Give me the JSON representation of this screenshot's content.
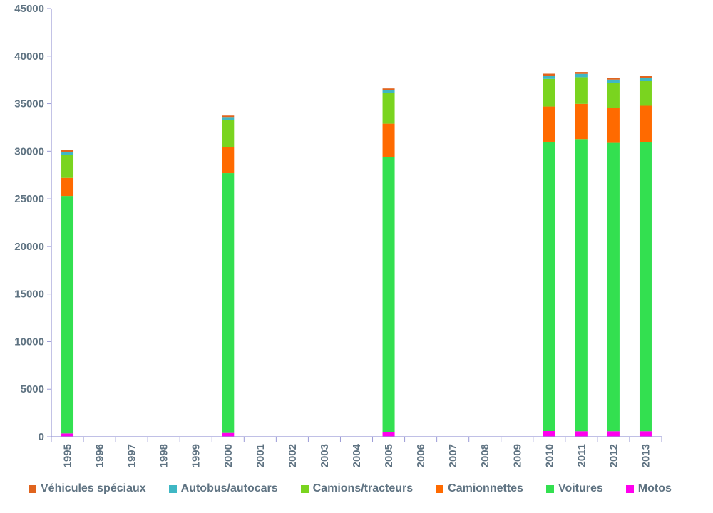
{
  "chart_data": {
    "type": "bar",
    "stacked": true,
    "title": "",
    "xlabel": "",
    "ylabel": "",
    "ylim": [
      0,
      45000
    ],
    "yticks": [
      0,
      5000,
      10000,
      15000,
      20000,
      25000,
      30000,
      35000,
      40000,
      45000
    ],
    "grid": false,
    "legend_position": "bottom",
    "categories": [
      "1995",
      "1996",
      "1997",
      "1998",
      "1999",
      "2000",
      "2001",
      "2002",
      "2003",
      "2004",
      "2005",
      "2006",
      "2007",
      "2008",
      "2009",
      "2010",
      "2011",
      "2012",
      "2013"
    ],
    "series": [
      {
        "name": "Motos",
        "color": "#ff00ee",
        "values": [
          350,
          0,
          0,
          0,
          0,
          400,
          0,
          0,
          0,
          0,
          500,
          0,
          0,
          0,
          0,
          600,
          580,
          580,
          580
        ]
      },
      {
        "name": "Voitures",
        "color": "#33e050",
        "values": [
          24950,
          0,
          0,
          0,
          0,
          27300,
          0,
          0,
          0,
          0,
          28900,
          0,
          0,
          0,
          0,
          30400,
          30700,
          30300,
          30400
        ]
      },
      {
        "name": "Camionnettes",
        "color": "#ff6a00",
        "values": [
          1900,
          0,
          0,
          0,
          0,
          2700,
          0,
          0,
          0,
          0,
          3500,
          0,
          0,
          0,
          0,
          3700,
          3700,
          3700,
          3800
        ]
      },
      {
        "name": "Camions/tracteurs",
        "color": "#7ad41f",
        "values": [
          2450,
          0,
          0,
          0,
          0,
          2900,
          0,
          0,
          0,
          0,
          3200,
          0,
          0,
          0,
          0,
          2900,
          2800,
          2600,
          2600
        ]
      },
      {
        "name": "Autobus/autocars",
        "color": "#3fb7c4",
        "values": [
          300,
          0,
          0,
          0,
          0,
          300,
          0,
          0,
          0,
          0,
          350,
          0,
          0,
          0,
          0,
          350,
          350,
          350,
          350
        ]
      },
      {
        "name": "Véhicules spéciaux",
        "color": "#e0641e",
        "values": [
          150,
          0,
          0,
          0,
          0,
          150,
          0,
          0,
          0,
          0,
          150,
          0,
          0,
          0,
          0,
          200,
          200,
          200,
          200
        ]
      }
    ],
    "legend_order": [
      "Véhicules spéciaux",
      "Autobus/autocars",
      "Camions/tracteurs",
      "Camionnettes",
      "Voitures",
      "Motos"
    ],
    "axis_color": "#9b9bd6"
  }
}
